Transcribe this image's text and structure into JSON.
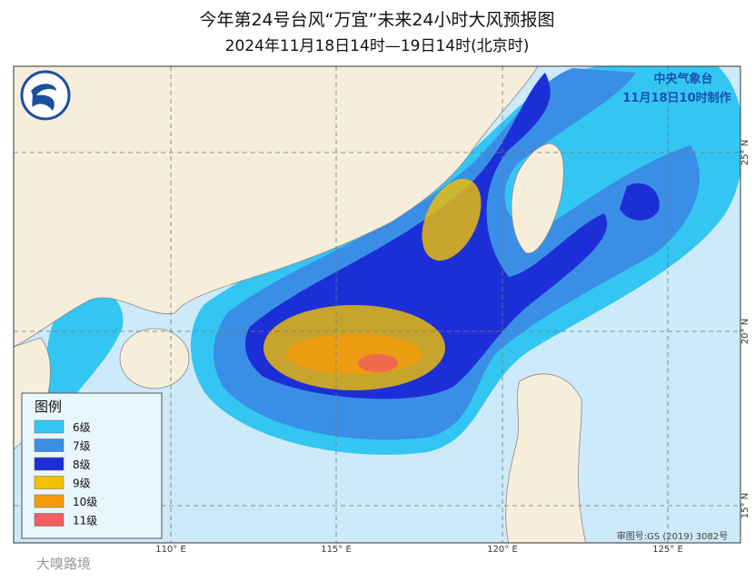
{
  "header": {
    "title": "今年第24号台风“万宜”未来24小时大风预报图",
    "subtitle": "2024年11月18日14时—19日14时(北京时)"
  },
  "issuer": {
    "name": "中央气象台",
    "time": "11月18日10时制作"
  },
  "legend": {
    "title": "图例",
    "items": [
      {
        "label": "6级",
        "color": "#33c6f2"
      },
      {
        "label": "7级",
        "color": "#3a8ee6"
      },
      {
        "label": "8级",
        "color": "#1c2fd6"
      },
      {
        "label": "9级",
        "color": "#f2c200"
      },
      {
        "label": "10级",
        "color": "#f59a0a"
      },
      {
        "label": "11级",
        "color": "#f25e5e"
      }
    ]
  },
  "grid": {
    "longitudes": [
      "110° E",
      "115° E",
      "120° E",
      "125° E"
    ],
    "latitudes": [
      "25° N",
      "20° N",
      "15° N"
    ]
  },
  "footer": {
    "map_number": "审图号:GS (2019) 3082号",
    "watermark": "大嗅路境"
  }
}
